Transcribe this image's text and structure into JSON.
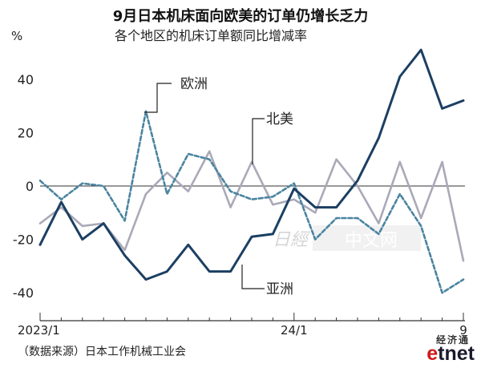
{
  "title": "9月日本机床面向欧美的订单仍增长乏力",
  "subtitle": "各个地区的机床订单额同比增减率",
  "source": "（数据来源）日本工作机械工业会",
  "watermark": {
    "logo_text": "日經中文网"
  },
  "brand": {
    "top": "经济通",
    "main_e": "e",
    "main_rest": "tnet"
  },
  "chart_data": {
    "type": "line",
    "unit_label": "%",
    "ylim": [
      -45,
      55
    ],
    "yticks": [
      40,
      20,
      0,
      -20,
      -40
    ],
    "xlabels": [
      {
        "label": "2023/1",
        "month_index": 0
      },
      {
        "label": "24/1",
        "month_index": 12
      },
      {
        "label": "9",
        "month_index": 20
      }
    ],
    "zero_line": true,
    "series": [
      {
        "name": "欧洲",
        "color": "#4a84a0",
        "dash": "5,3",
        "values": [
          2,
          -5,
          1,
          0,
          -13,
          28,
          -3,
          12,
          10,
          -2,
          -5,
          -4,
          1,
          -20,
          -12,
          -12,
          -18,
          -3,
          -15,
          -40,
          -35
        ]
      },
      {
        "name": "北美",
        "color": "#a9a9b8",
        "dash": "",
        "values": [
          -14,
          -8,
          -15,
          -14,
          -24,
          -3,
          5,
          -2,
          13,
          -8,
          9,
          -7,
          -5,
          -10,
          10,
          0,
          -14,
          9,
          -12,
          9,
          -28
        ]
      },
      {
        "name": "亚洲",
        "color": "#1c3f63",
        "dash": "",
        "values": [
          -22,
          -6,
          -20,
          -14,
          -26,
          -35,
          -32,
          -22,
          -32,
          -32,
          -19,
          -18,
          -1,
          -8,
          -8,
          2,
          18,
          41,
          51,
          29,
          32
        ]
      }
    ]
  },
  "colors": {
    "axis": "#333333",
    "zero_line": "#333333"
  }
}
